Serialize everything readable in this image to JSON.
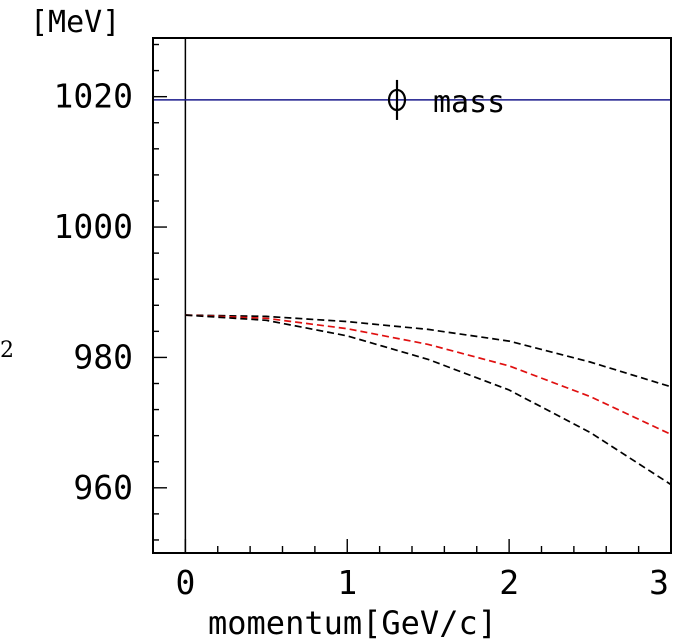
{
  "chart_data": {
    "type": "line",
    "ylabel_unit": "[MeV]",
    "xlabel": "momentum[GeV/c]",
    "ylabel_fragment": "2",
    "annotation": "mass",
    "annotation_symbol": "ϕ",
    "xlim": [
      -0.2,
      3.0
    ],
    "ylim": [
      950,
      1029
    ],
    "x_ticks": [
      0,
      1,
      2,
      3
    ],
    "y_ticks": [
      960,
      980,
      1000,
      1020
    ],
    "grid": false,
    "reference_line": {
      "y": 1019.5,
      "color": "#1a1a8c",
      "style": "solid"
    },
    "series": [
      {
        "x": [
          0,
          0.5,
          1,
          1.5,
          2,
          2.5,
          3
        ],
        "values": [
          986.5,
          986.3,
          985.5,
          984.3,
          982.5,
          979.3,
          975.5
        ],
        "color": "#000000",
        "style": "dashed"
      },
      {
        "x": [
          0,
          0.5,
          1,
          1.5,
          2,
          2.5,
          3
        ],
        "values": [
          986.5,
          986.0,
          984.4,
          982.0,
          978.7,
          974.0,
          968.2
        ],
        "color": "#e01010",
        "style": "dashed"
      },
      {
        "x": [
          0,
          0.5,
          1,
          1.5,
          2,
          2.5,
          3
        ],
        "values": [
          986.5,
          985.7,
          983.3,
          979.7,
          975.0,
          968.5,
          960.5
        ],
        "color": "#000000",
        "style": "dashed"
      }
    ]
  }
}
